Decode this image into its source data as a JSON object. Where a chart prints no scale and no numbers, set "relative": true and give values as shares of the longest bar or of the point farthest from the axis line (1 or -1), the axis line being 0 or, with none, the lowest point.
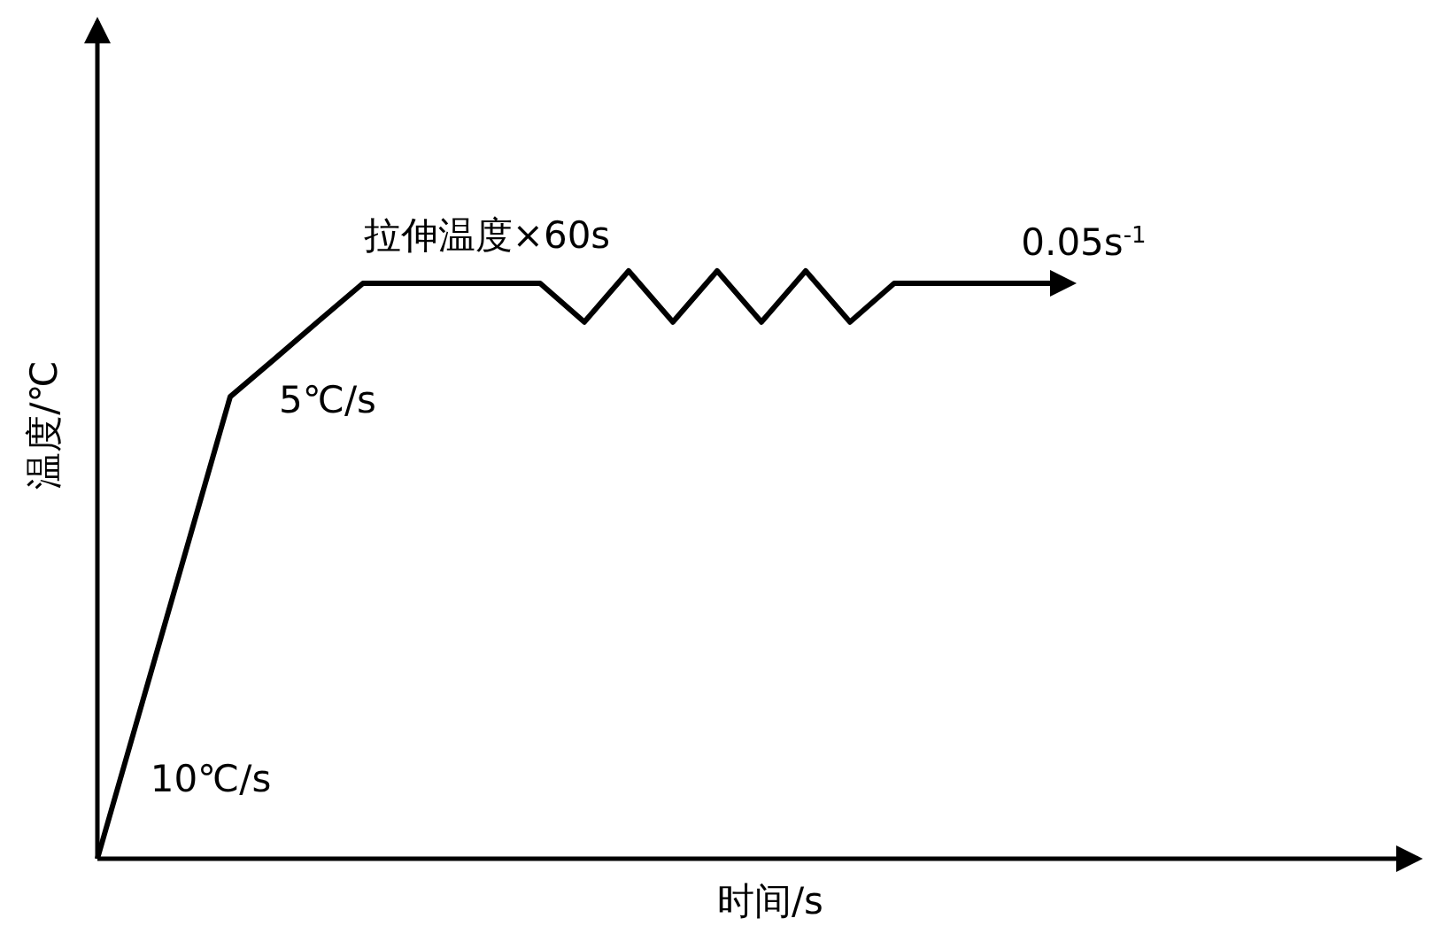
{
  "chart_data": {
    "type": "line",
    "relative": true,
    "xlabel": "时间/s",
    "ylabel": "温度/℃",
    "color": "#000000",
    "categories": [
      null,
      null,
      null,
      null,
      null,
      null,
      null,
      null,
      null,
      null,
      null,
      null,
      null,
      null,
      null,
      null,
      null,
      null,
      null,
      null,
      null,
      null,
      null
    ],
    "values": [
      0,
      0.262,
      0.524,
      0.786,
      0.85,
      0.915,
      0.979,
      0.979,
      0.979,
      0.979,
      0.979,
      0.913,
      1,
      0.913,
      1,
      0.913,
      1,
      0.913,
      0.979,
      0.979,
      0.979,
      0.979,
      0.979
    ],
    "annotations": [
      "10℃/s",
      "5℃/s",
      "拉伸温度×60s",
      "0.05s$^{-1}$"
    ]
  }
}
